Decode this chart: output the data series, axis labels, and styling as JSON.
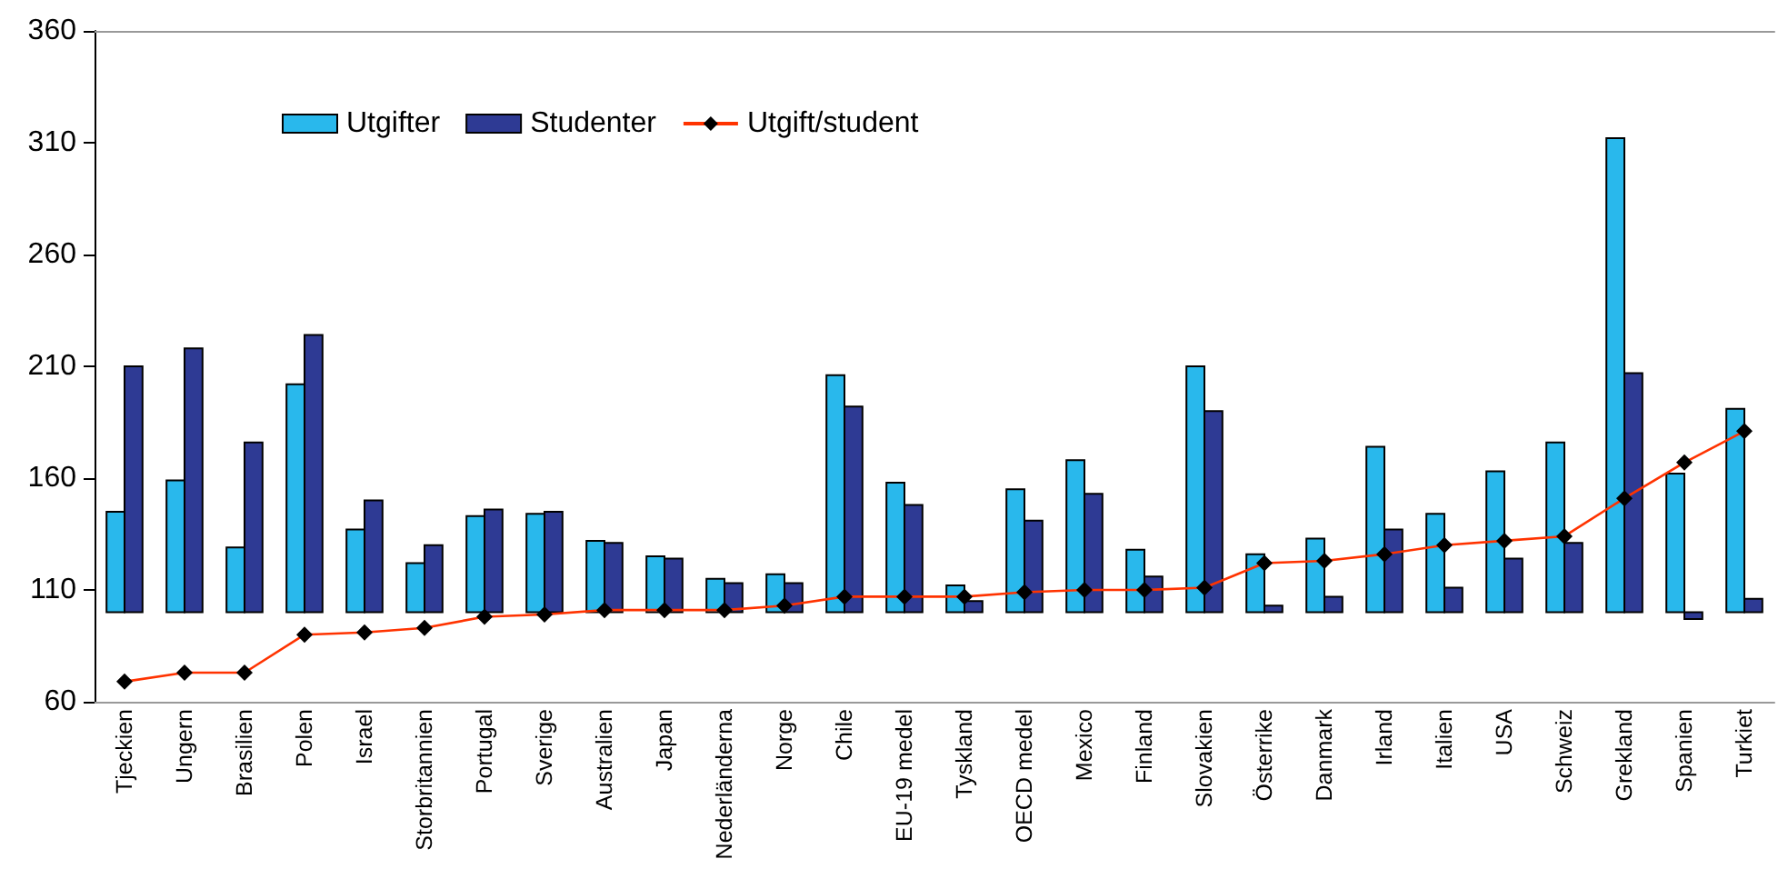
{
  "chart_data": {
    "type": "bar",
    "categories": [
      "Tjeckien",
      "Ungern",
      "Brasilien",
      "Polen",
      "Israel",
      "Storbritannien",
      "Portugal",
      "Sverige",
      "Australien",
      "Japan",
      "Nederländerna",
      "Norge",
      "Chile",
      "EU-19 medel",
      "Tyskland",
      "OECD medel",
      "Mexico",
      "Finland",
      "Slovakien",
      "Österrike",
      "Danmark",
      "Irland",
      "Italien",
      "USA",
      "Schweiz",
      "Grekland",
      "Spanien",
      "Turkiet"
    ],
    "series": [
      {
        "name": "Utgifter",
        "color": "#29b8ec",
        "base": [
          100,
          100,
          100,
          100,
          100,
          100,
          100,
          100,
          100,
          100,
          100,
          100,
          100,
          100,
          100,
          100,
          100,
          100,
          100,
          100,
          100,
          100,
          100,
          100,
          100,
          100,
          100,
          100
        ],
        "values": [
          45,
          59,
          29,
          102,
          37,
          22,
          43,
          44,
          32,
          25,
          15,
          17,
          106,
          58,
          12,
          55,
          68,
          28,
          110,
          26,
          33,
          74,
          44,
          63,
          76,
          212,
          62,
          91
        ]
      },
      {
        "name": "Studenter",
        "color": "#2e3a94",
        "base": [
          100,
          100,
          100,
          100,
          100,
          100,
          100,
          100,
          100,
          100,
          100,
          100,
          100,
          100,
          100,
          100,
          100,
          100,
          100,
          100,
          100,
          100,
          100,
          100,
          100,
          100,
          100,
          100
        ],
        "values": [
          110,
          118,
          76,
          124,
          50,
          30,
          46,
          45,
          31,
          24,
          13,
          13,
          92,
          48,
          5,
          41,
          53,
          16,
          90,
          3,
          7,
          37,
          11,
          24,
          31,
          107,
          -3,
          6
        ]
      },
      {
        "name": "Utgift/student",
        "type": "line",
        "color": "#ff3300",
        "marker": "diamond",
        "values": [
          69,
          73,
          73,
          90,
          91,
          93,
          98,
          99,
          101,
          101,
          101,
          103,
          107,
          107,
          107,
          109,
          110,
          110,
          111,
          122,
          123,
          126,
          130,
          132,
          134,
          151,
          167,
          181
        ]
      }
    ],
    "ylim": [
      60,
      360
    ],
    "yticks": [
      60,
      110,
      160,
      210,
      260,
      310,
      360
    ],
    "grid": false,
    "legend": "top left",
    "line_style": "solid"
  }
}
